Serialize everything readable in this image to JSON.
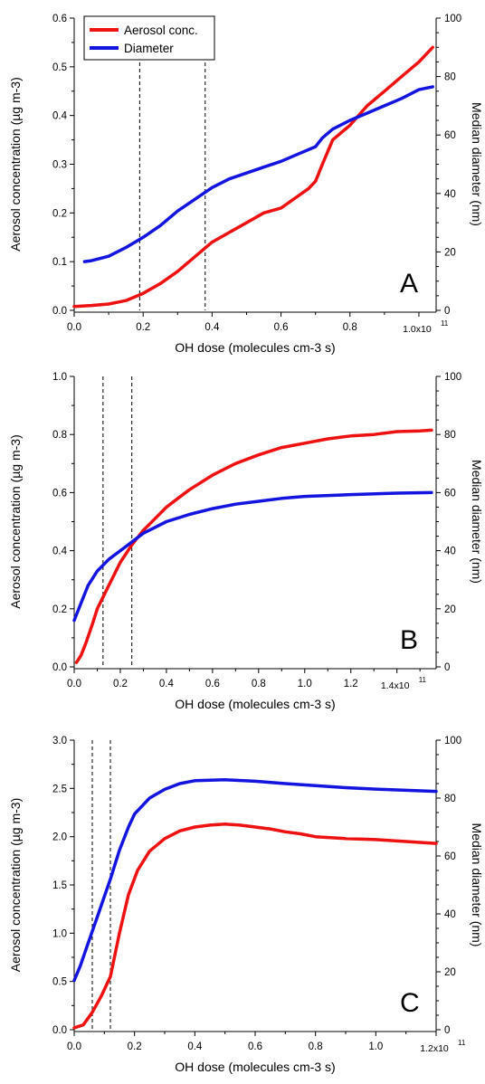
{
  "chart_data": [
    {
      "type": "line",
      "panel_label": "A",
      "xlabel": "OH dose (molecules cm-3 s)",
      "ylabel_left": "Aerosol concentration (µg m-3)",
      "ylabel_right": "Median diameter (nm)",
      "xlim": [
        0,
        1.05
      ],
      "ylim_left": [
        0,
        0.6
      ],
      "ylim_right": [
        0,
        100
      ],
      "x_ticks": [
        "0.0",
        "0.2",
        "0.4",
        "0.6",
        "0.8"
      ],
      "x_multiplier_label": "1.0x10",
      "x_multiplier_exp": "11",
      "y_ticks_left": [
        "0.0",
        "0.1",
        "0.2",
        "0.3",
        "0.4",
        "0.5",
        "0.6"
      ],
      "y_ticks_right": [
        "0",
        "20",
        "40",
        "60",
        "80",
        "100"
      ],
      "vlines": [
        0.19,
        0.38
      ],
      "legend": {
        "position": "top-left",
        "entries": [
          "Aerosol conc.",
          "Diameter"
        ]
      },
      "series": [
        {
          "name": "Aerosol conc.",
          "axis": "left",
          "color": "#ee1111",
          "x": [
            0,
            0.05,
            0.1,
            0.15,
            0.2,
            0.25,
            0.3,
            0.35,
            0.4,
            0.45,
            0.5,
            0.55,
            0.6,
            0.65,
            0.68,
            0.7,
            0.72,
            0.75,
            0.8,
            0.85,
            0.9,
            0.95,
            1.0,
            1.04
          ],
          "y": [
            0.008,
            0.01,
            0.013,
            0.02,
            0.035,
            0.055,
            0.08,
            0.11,
            0.14,
            0.16,
            0.18,
            0.2,
            0.21,
            0.235,
            0.25,
            0.265,
            0.3,
            0.35,
            0.38,
            0.42,
            0.45,
            0.48,
            0.51,
            0.54
          ]
        },
        {
          "name": "Diameter",
          "axis": "right",
          "color": "#1414e0",
          "x": [
            0.03,
            0.05,
            0.1,
            0.15,
            0.2,
            0.25,
            0.3,
            0.35,
            0.4,
            0.45,
            0.5,
            0.55,
            0.6,
            0.65,
            0.7,
            0.72,
            0.75,
            0.8,
            0.85,
            0.9,
            0.95,
            1.0,
            1.04
          ],
          "y": [
            16.7,
            17,
            18.5,
            21.5,
            25,
            29,
            34,
            38,
            42,
            45,
            47,
            49,
            51,
            53.5,
            56,
            59,
            62,
            65,
            67.5,
            70,
            72.5,
            75.5,
            76.5
          ]
        }
      ]
    },
    {
      "type": "line",
      "panel_label": "B",
      "xlabel": "OH dose (molecules cm-3 s)",
      "ylabel_left": "Aerosol concentration (µg m-3)",
      "ylabel_right": "Median diameter (nm)",
      "xlim": [
        0,
        1.57
      ],
      "ylim_left": [
        0,
        1.0
      ],
      "ylim_right": [
        0,
        100
      ],
      "x_ticks": [
        "0.0",
        "0.2",
        "0.4",
        "0.6",
        "0.8",
        "1.0",
        "1.2"
      ],
      "x_multiplier_label": "1.4x10",
      "x_multiplier_exp": "11",
      "y_ticks_left": [
        "0.0",
        "0.2",
        "0.4",
        "0.6",
        "0.8",
        "1.0"
      ],
      "y_ticks_right": [
        "0",
        "20",
        "40",
        "60",
        "80",
        "100"
      ],
      "vlines": [
        0.125,
        0.25
      ],
      "series": [
        {
          "name": "Aerosol conc.",
          "axis": "left",
          "color": "#ee1111",
          "x": [
            0.01,
            0.03,
            0.05,
            0.08,
            0.1,
            0.15,
            0.2,
            0.25,
            0.3,
            0.35,
            0.4,
            0.45,
            0.5,
            0.6,
            0.7,
            0.8,
            0.9,
            1.0,
            1.1,
            1.2,
            1.3,
            1.4,
            1.5,
            1.55
          ],
          "y": [
            0.015,
            0.04,
            0.08,
            0.15,
            0.2,
            0.28,
            0.36,
            0.42,
            0.47,
            0.51,
            0.55,
            0.58,
            0.61,
            0.66,
            0.7,
            0.73,
            0.755,
            0.77,
            0.785,
            0.795,
            0.8,
            0.81,
            0.812,
            0.815
          ]
        },
        {
          "name": "Diameter",
          "axis": "right",
          "color": "#1414e0",
          "x": [
            0,
            0.03,
            0.06,
            0.1,
            0.15,
            0.2,
            0.25,
            0.3,
            0.35,
            0.4,
            0.5,
            0.6,
            0.7,
            0.8,
            0.9,
            1.0,
            1.2,
            1.4,
            1.55
          ],
          "y": [
            16,
            22,
            28,
            33,
            37,
            40,
            43,
            46,
            48,
            50,
            52.5,
            54.5,
            56,
            57,
            58,
            58.7,
            59.3,
            59.8,
            60
          ]
        }
      ]
    },
    {
      "type": "line",
      "panel_label": "C",
      "xlabel": "OH dose (molecules cm-3 s)",
      "ylabel_left": "Aerosol concentration (µg m-3)",
      "ylabel_right": "Median diameter (nm)",
      "xlim": [
        0,
        1.2
      ],
      "ylim_left": [
        0,
        3.0
      ],
      "ylim_right": [
        0,
        100
      ],
      "x_ticks": [
        "0.0",
        "0.2",
        "0.4",
        "0.6",
        "0.8",
        "1.0"
      ],
      "x_multiplier_label": "1.2x10",
      "x_multiplier_exp": "11",
      "y_ticks_left": [
        "0.0",
        "0.5",
        "1.0",
        "1.5",
        "2.0",
        "2.5",
        "3.0"
      ],
      "y_ticks_right": [
        "0",
        "20",
        "40",
        "60",
        "80",
        "100"
      ],
      "vlines": [
        0.06,
        0.12
      ],
      "series": [
        {
          "name": "Aerosol conc.",
          "axis": "left",
          "color": "#ee1111",
          "x": [
            0.0,
            0.03,
            0.06,
            0.09,
            0.12,
            0.15,
            0.18,
            0.21,
            0.25,
            0.3,
            0.35,
            0.4,
            0.45,
            0.5,
            0.55,
            0.6,
            0.65,
            0.7,
            0.75,
            0.8,
            0.9,
            1.0,
            1.1,
            1.2
          ],
          "y": [
            0.02,
            0.05,
            0.18,
            0.35,
            0.55,
            1.0,
            1.4,
            1.65,
            1.85,
            1.98,
            2.06,
            2.1,
            2.12,
            2.13,
            2.12,
            2.1,
            2.08,
            2.05,
            2.03,
            2.0,
            1.98,
            1.97,
            1.95,
            1.93
          ]
        },
        {
          "name": "Diameter",
          "axis": "right",
          "color": "#1414e0",
          "x": [
            0.0,
            0.02,
            0.04,
            0.06,
            0.08,
            0.1,
            0.12,
            0.15,
            0.18,
            0.2,
            0.25,
            0.3,
            0.35,
            0.4,
            0.5,
            0.6,
            0.7,
            0.8,
            0.9,
            1.0,
            1.1,
            1.2
          ],
          "y": [
            17,
            22,
            28,
            34,
            40,
            46,
            52,
            62,
            70,
            74.5,
            80,
            83,
            85,
            86,
            86.3,
            85.8,
            85,
            84.3,
            83.6,
            83.1,
            82.7,
            82.3
          ]
        }
      ]
    }
  ]
}
